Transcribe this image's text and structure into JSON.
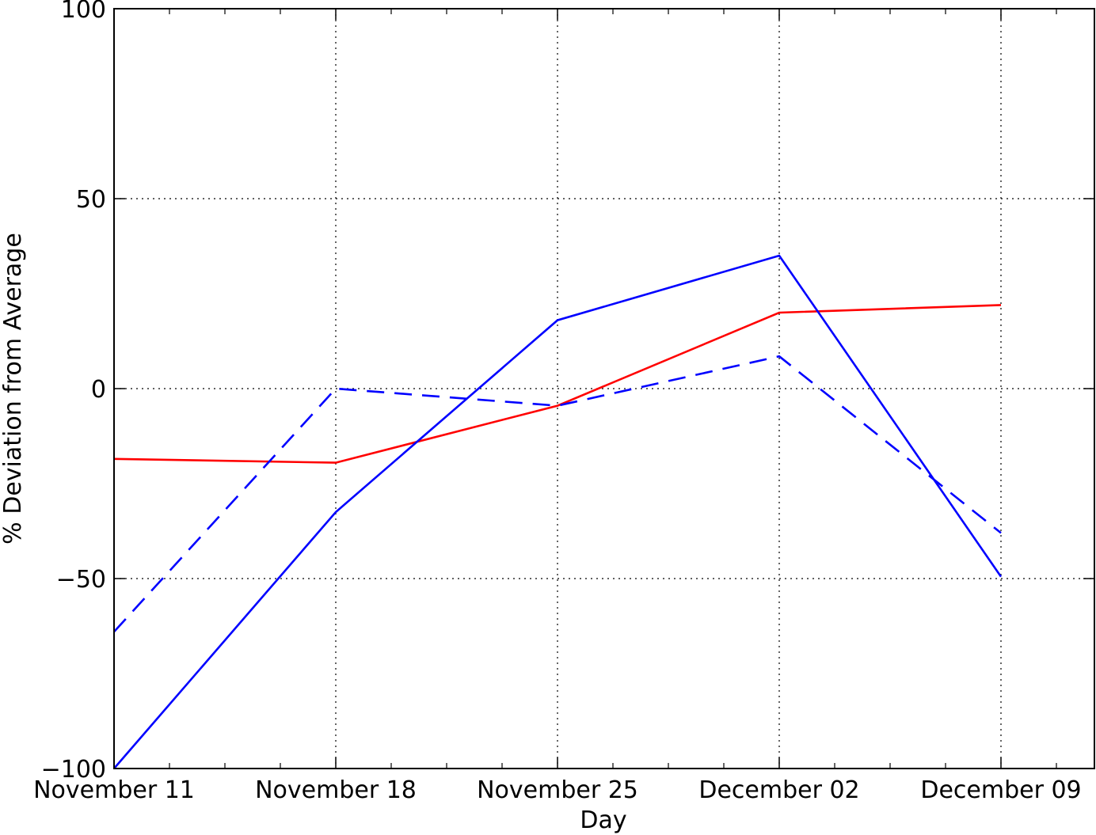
{
  "chart_data": {
    "type": "line",
    "title": "",
    "xlabel": "Day",
    "ylabel": "% Deviation from Average",
    "x": [
      "November 11",
      "November 18",
      "November 25",
      "December 02",
      "December 09"
    ],
    "x_ticks": [
      "November 11",
      "November 18",
      "November 25",
      "December 02",
      "December 09"
    ],
    "x_minor_ticks_per_interval": 3,
    "x_range": [
      "November 11",
      "December 12"
    ],
    "ylim": [
      -100,
      100
    ],
    "y_ticks": [
      -100,
      -50,
      0,
      50,
      100
    ],
    "y_tick_labels": [
      "−100",
      "−50",
      "0",
      "50",
      "100"
    ],
    "grid": true,
    "legend": "none",
    "series": [
      {
        "values": [
          -18.5,
          -19.5,
          -4.5,
          20,
          22
        ],
        "color": "#ff0000",
        "style": "solid"
      },
      {
        "values": [
          -100,
          -32.5,
          18,
          35,
          -49.5
        ],
        "color": "#0000ff",
        "style": "solid"
      },
      {
        "values": [
          -64,
          0,
          -4.5,
          8.5,
          -38
        ],
        "color": "#0000ff",
        "style": "dashed"
      }
    ]
  }
}
